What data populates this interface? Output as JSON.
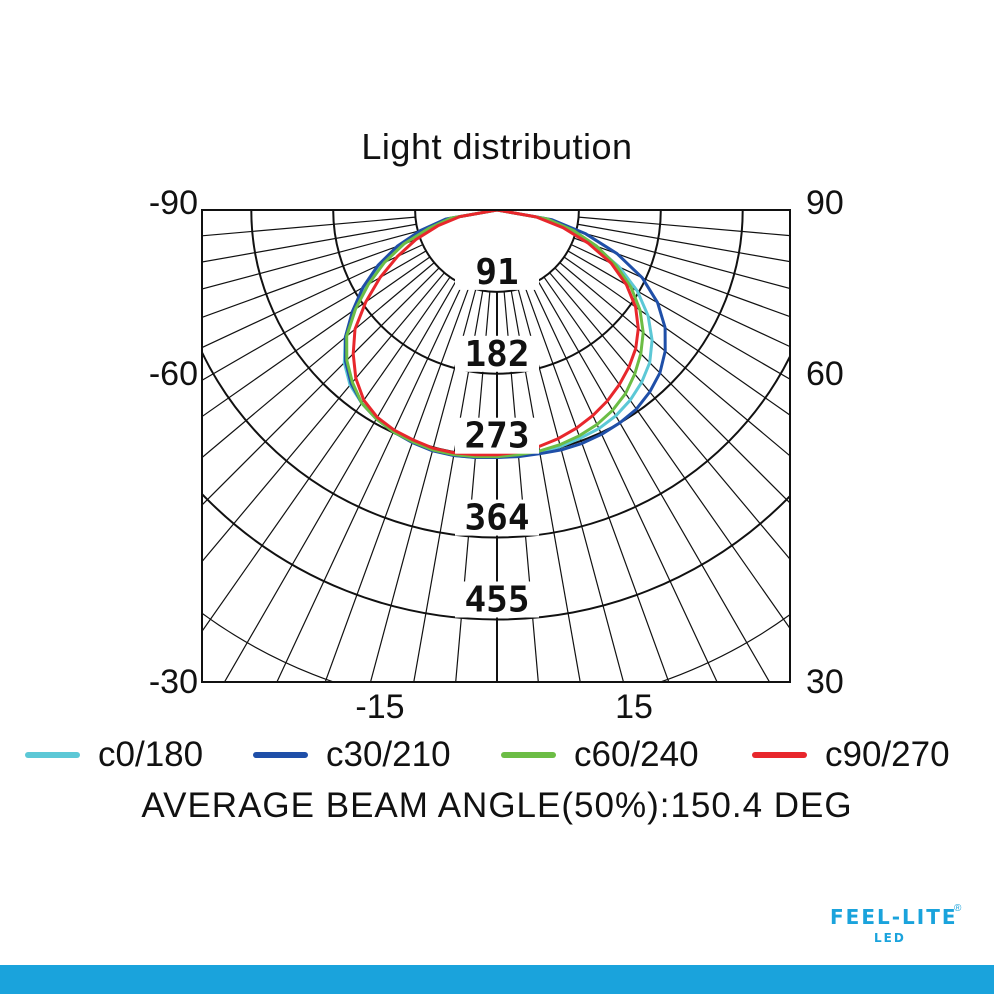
{
  "chart_data": {
    "type": "line",
    "title": "Light distribution",
    "plot_kind": "polar-candela-upper-half",
    "left_axis_labels": [
      "-90",
      "-60",
      "-30"
    ],
    "right_axis_labels": [
      "90",
      "60",
      "30"
    ],
    "bottom_axis_labels": [
      "-15",
      "15"
    ],
    "ring_labels": [
      "91",
      "182",
      "273",
      "364",
      "455"
    ],
    "rings": [
      91,
      182,
      273,
      364,
      455
    ],
    "r_max": 455,
    "angle_range": [
      -90,
      90
    ],
    "spoke_step_deg": 5,
    "grid": true,
    "angle_unit": "deg",
    "series": [
      {
        "name": "c0/180",
        "color": "#5cc8d6",
        "angles": [
          -90,
          -80,
          -75,
          -70,
          -65,
          -60,
          -55,
          -50,
          -45,
          -40,
          -35,
          -30,
          -25,
          -20,
          -15,
          -10,
          -5,
          0,
          5,
          10,
          15,
          20,
          25,
          30,
          35,
          40,
          45,
          50,
          55,
          60,
          65,
          70,
          75,
          80,
          90
        ],
        "values": [
          0,
          55,
          82,
          112,
          140,
          170,
          195,
          220,
          240,
          254,
          262,
          268,
          271,
          274,
          276,
          277,
          276,
          275,
          274,
          273,
          272,
          270,
          268,
          264,
          258,
          250,
          240,
          225,
          205,
          180,
          150,
          115,
          85,
          55,
          0
        ]
      },
      {
        "name": "c30/210",
        "color": "#1f4fa8",
        "angles": [
          -90,
          -80,
          -75,
          -70,
          -65,
          -60,
          -55,
          -50,
          -45,
          -40,
          -35,
          -30,
          -25,
          -20,
          -15,
          -10,
          -5,
          0,
          5,
          10,
          15,
          20,
          25,
          30,
          35,
          40,
          45,
          50,
          55,
          60,
          65,
          70,
          75,
          80,
          90
        ],
        "values": [
          0,
          58,
          88,
          118,
          146,
          172,
          196,
          220,
          238,
          252,
          262,
          268,
          272,
          275,
          277,
          277,
          276,
          275,
          275,
          275,
          276,
          276,
          275,
          273,
          270,
          264,
          256,
          244,
          228,
          206,
          178,
          142,
          102,
          62,
          0
        ]
      },
      {
        "name": "c60/240",
        "color": "#6cbd45",
        "angles": [
          -90,
          -80,
          -75,
          -70,
          -65,
          -60,
          -55,
          -50,
          -45,
          -40,
          -35,
          -30,
          -25,
          -20,
          -15,
          -10,
          -5,
          0,
          5,
          10,
          15,
          20,
          25,
          30,
          35,
          40,
          45,
          50,
          55,
          60,
          65,
          70,
          75,
          80,
          90
        ],
        "values": [
          0,
          52,
          78,
          110,
          138,
          165,
          192,
          218,
          236,
          250,
          262,
          268,
          272,
          274,
          276,
          276,
          275,
          274,
          273,
          272,
          270,
          267,
          263,
          257,
          249,
          238,
          226,
          212,
          194,
          172,
          146,
          118,
          88,
          56,
          0
        ]
      },
      {
        "name": "c90/270",
        "color": "#e8272c",
        "angles": [
          -90,
          -80,
          -75,
          -70,
          -65,
          -60,
          -55,
          -50,
          -45,
          -40,
          -35,
          -30,
          -25,
          -20,
          -15,
          -10,
          -5,
          0,
          5,
          10,
          15,
          20,
          25,
          30,
          35,
          40,
          45,
          50,
          55,
          60,
          65,
          70,
          75,
          80,
          90
        ],
        "values": [
          0,
          42,
          68,
          96,
          122,
          150,
          178,
          206,
          226,
          244,
          258,
          266,
          270,
          272,
          274,
          274,
          273,
          272,
          270,
          267,
          263,
          258,
          252,
          245,
          237,
          228,
          218,
          205,
          188,
          166,
          140,
          108,
          76,
          44,
          0
        ]
      }
    ]
  },
  "legend": {
    "items": [
      {
        "label": "c0/180",
        "color": "#5cc8d6"
      },
      {
        "label": "c30/210",
        "color": "#1f4fa8"
      },
      {
        "label": "c60/240",
        "color": "#6cbd45"
      },
      {
        "label": "c90/270",
        "color": "#e8272c"
      }
    ]
  },
  "beam_angle_text": "AVERAGE BEAM ANGLE(50%):150.4  DEG",
  "logo": {
    "main": "FEEL-LITE",
    "sub": "LED",
    "reg": "®"
  },
  "colors": {
    "bottom_bar": "#1aa3dc"
  }
}
